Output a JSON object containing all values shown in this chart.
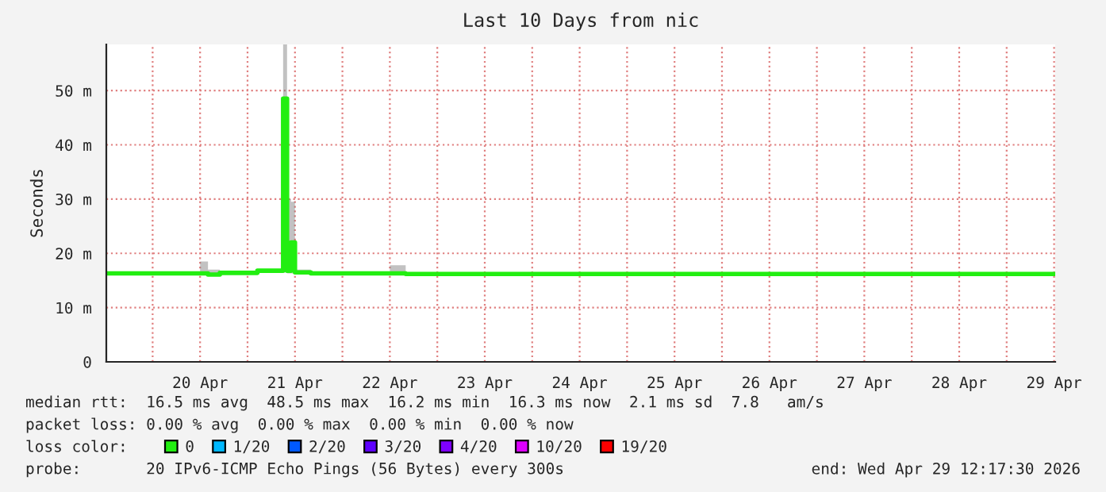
{
  "chart_data": {
    "type": "line",
    "title": "Last 10 Days from nic",
    "ylabel": "Seconds",
    "x": [
      "2026-04-19T12:17",
      "2026-04-20T10:00",
      "2026-04-20T12:00",
      "2026-04-20T14:00",
      "2026-04-20T17:00",
      "2026-04-20T22:00",
      "2026-04-21T02:30",
      "2026-04-21T08:30",
      "2026-04-21T09:00",
      "2026-04-21T10:00",
      "2026-04-21T11:00",
      "2026-04-21T12:00",
      "2026-04-21T16:00",
      "2026-04-22T08:00",
      "2026-04-22T12:00",
      "2026-04-22T16:00",
      "2026-04-25T00:00",
      "2026-04-29T12:17"
    ],
    "series": [
      {
        "name": "0",
        "color": "#22ee11",
        "values": [
          16.3,
          16.3,
          16.3,
          16.1,
          16.4,
          16.4,
          16.8,
          16.8,
          48.5,
          16.8,
          22,
          16.5,
          16.3,
          16.3,
          16.3,
          16.2,
          16.2,
          16.2
        ],
        "lower": [
          16.1,
          16.1,
          16,
          16,
          16.2,
          16.2,
          16.5,
          16.5,
          16.5,
          16.3,
          16.3,
          16.2,
          16.1,
          16.1,
          16.1,
          16,
          16,
          16
        ],
        "upper": [
          16.6,
          16.6,
          18.5,
          17,
          16.6,
          16.6,
          17,
          17.2,
          58.5,
          30,
          29.5,
          17,
          16.6,
          16.6,
          17.8,
          16.5,
          16.5,
          16.5
        ]
      },
      {
        "name": "1/20",
        "color": "#00b8ff",
        "values": [
          null,
          null,
          null,
          null,
          null,
          null,
          null,
          null,
          null,
          null,
          null,
          null,
          null,
          null,
          null,
          null,
          null,
          null
        ]
      },
      {
        "name": "2/20",
        "color": "#0059ff",
        "values": [
          null,
          null,
          null,
          null,
          null,
          null,
          null,
          null,
          null,
          null,
          null,
          null,
          null,
          null,
          null,
          null,
          null,
          null
        ]
      },
      {
        "name": "3/20",
        "color": "#5e00ff",
        "values": [
          null,
          null,
          null,
          null,
          null,
          null,
          null,
          null,
          null,
          null,
          null,
          null,
          null,
          null,
          null,
          null,
          null,
          null
        ]
      },
      {
        "name": "4/20",
        "color": "#7e00ff",
        "values": [
          null,
          null,
          null,
          null,
          null,
          null,
          null,
          null,
          null,
          null,
          null,
          null,
          null,
          null,
          null,
          null,
          null,
          null
        ]
      },
      {
        "name": "10/20",
        "color": "#dd00ff",
        "values": [
          null,
          null,
          null,
          null,
          null,
          null,
          null,
          null,
          null,
          null,
          null,
          null,
          null,
          null,
          null,
          null,
          null,
          null
        ]
      },
      {
        "name": "19/20",
        "color": "#ff0000",
        "values": [
          null,
          null,
          null,
          null,
          null,
          null,
          null,
          null,
          null,
          null,
          null,
          null,
          null,
          null,
          null,
          null,
          null,
          null
        ]
      }
    ],
    "xlim": [
      "2026-04-19T12:17",
      "2026-04-29T12:17"
    ],
    "xticks": [
      {
        "value": "2026-04-20",
        "label": null
      },
      {
        "value": "2026-04-20T12:00",
        "label": "20 Apr"
      },
      {
        "value": "2026-04-21",
        "label": null
      },
      {
        "value": "2026-04-21T12:00",
        "label": "21 Apr"
      },
      {
        "value": "2026-04-22",
        "label": null
      },
      {
        "value": "2026-04-22T12:00",
        "label": "22 Apr"
      },
      {
        "value": "2026-04-23",
        "label": null
      },
      {
        "value": "2026-04-23T12:00",
        "label": "23 Apr"
      },
      {
        "value": "2026-04-24",
        "label": null
      },
      {
        "value": "2026-04-24T12:00",
        "label": "24 Apr"
      },
      {
        "value": "2026-04-25",
        "label": null
      },
      {
        "value": "2026-04-25T12:00",
        "label": "25 Apr"
      },
      {
        "value": "2026-04-26",
        "label": null
      },
      {
        "value": "2026-04-26T12:00",
        "label": "26 Apr"
      },
      {
        "value": "2026-04-27",
        "label": null
      },
      {
        "value": "2026-04-27T12:00",
        "label": "27 Apr"
      },
      {
        "value": "2026-04-28",
        "label": null
      },
      {
        "value": "2026-04-28T12:00",
        "label": "28 Apr"
      },
      {
        "value": "2026-04-29",
        "label": null
      },
      {
        "value": "2026-04-29T12:00",
        "label": "29 Apr"
      }
    ],
    "ylim": [
      0,
      58.5
    ],
    "yticks": [
      0,
      {
        "value": 10,
        "label": "10 m"
      },
      {
        "value": 20,
        "label": "20 m"
      },
      {
        "value": 30,
        "label": "30 m"
      },
      {
        "value": 40,
        "label": "40 m"
      },
      {
        "value": 50,
        "label": "50 m"
      }
    ],
    "grid": true,
    "legend": "bottom",
    "annotations": [
      "median rtt:  16.5 ms avg  48.5 ms max  16.2 ms min  16.3 ms now  2.1 ms sd  7.8   am/s",
      "packet loss: 0.00 % avg  0.00 % max  0.00 % min  0.00 % now",
      "loss color:",
      "probe:       20 IPv6-ICMP Echo Pings (56 Bytes) every 300s",
      "end: Wed Apr 29 12:17:30 2026"
    ]
  }
}
